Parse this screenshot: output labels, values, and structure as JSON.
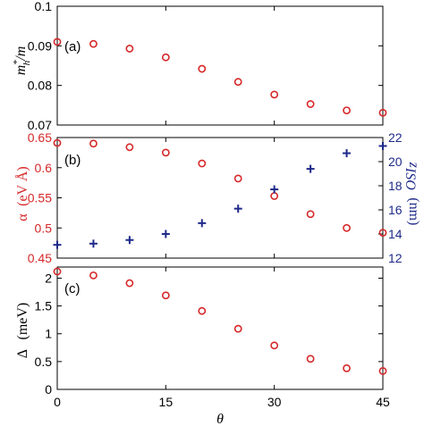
{
  "chart_data": {
    "type": "scatter",
    "xlabel": "θ",
    "x_ticks": [
      "0",
      "15",
      "30",
      "45"
    ],
    "xlim": [
      0,
      45
    ],
    "colors": {
      "red": "#d62728",
      "blue": "#1f2a8a",
      "axis": "#000000"
    },
    "panels": [
      {
        "label": "(a)",
        "ylabel_main": "m",
        "ylabel_sup": "*",
        "ylabel_sub": "h",
        "ylabel_tail": "/m",
        "ylim": [
          0.07,
          0.1
        ],
        "y_ticks": [
          "0.07",
          "0.08",
          "0.09",
          "0.1"
        ],
        "series": [
          {
            "marker": "circle",
            "color": "#d62728",
            "x": [
              0,
              5,
              10,
              15,
              20,
              25,
              30,
              35,
              40,
              45
            ],
            "y": [
              0.091,
              0.0905,
              0.0893,
              0.0871,
              0.0842,
              0.0809,
              0.0777,
              0.0753,
              0.0737,
              0.0731
            ]
          }
        ]
      },
      {
        "label": "(b)",
        "ylabel_left_symbol": "α",
        "ylabel_left_unit": "(eV Å)",
        "ylabel_right_main": "z",
        "ylabel_right_sub": "ISO",
        "ylabel_right_unit": "(nm)",
        "ylim": [
          0.45,
          0.65
        ],
        "y_ticks": [
          "0.45",
          "0.5",
          "0.55",
          "0.6",
          "0.65"
        ],
        "y2lim": [
          12,
          22
        ],
        "y2_ticks": [
          "12",
          "14",
          "16",
          "18",
          "20",
          "22"
        ],
        "series": [
          {
            "marker": "circle",
            "color": "#d62728",
            "axis": "left",
            "x": [
              0,
              5,
              10,
              15,
              20,
              25,
              30,
              35,
              40,
              45
            ],
            "y": [
              0.641,
              0.64,
              0.634,
              0.625,
              0.607,
              0.582,
              0.553,
              0.523,
              0.5,
              0.492
            ]
          },
          {
            "marker": "plus",
            "color": "#1f2a8a",
            "axis": "right",
            "x": [
              0,
              5,
              10,
              15,
              20,
              25,
              30,
              35,
              40,
              45
            ],
            "y": [
              13.1,
              13.2,
              13.5,
              14.0,
              14.9,
              16.1,
              17.7,
              19.4,
              20.7,
              21.3
            ]
          }
        ]
      },
      {
        "label": "(c)",
        "ylabel_symbol": "Δ",
        "ylabel_unit": "(meV)",
        "ylim": [
          0,
          2.2
        ],
        "y_ticks": [
          "0",
          "0.5",
          "1",
          "1.5",
          "2"
        ],
        "series": [
          {
            "marker": "circle",
            "color": "#d62728",
            "x": [
              0,
              5,
              10,
              15,
              20,
              25,
              30,
              35,
              40,
              45
            ],
            "y": [
              2.12,
              2.05,
              1.91,
              1.69,
              1.41,
              1.09,
              0.79,
              0.55,
              0.38,
              0.33
            ]
          }
        ]
      }
    ]
  }
}
